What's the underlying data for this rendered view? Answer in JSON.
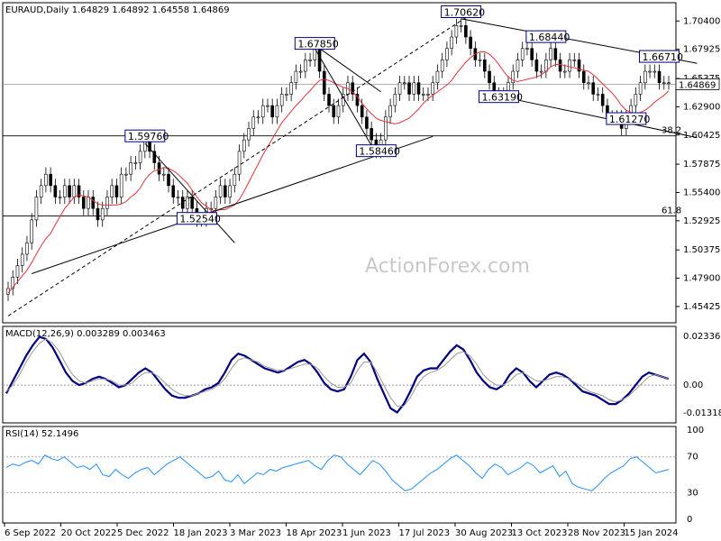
{
  "chart_data": [
    {
      "type": "candlestick",
      "symbol_header": "EURAUD,Daily  1.64829 1.64892 1.64558 1.64869",
      "current_price": "1.64869",
      "watermark": "ActionForex.com",
      "ylim": [
        1.44,
        1.72
      ],
      "y_ticks": [
        "1.70400",
        "1.67925",
        "1.65375",
        "1.62900",
        "1.60425",
        "1.57875",
        "1.55400",
        "1.52925",
        "1.50375",
        "1.47900",
        "1.45425"
      ],
      "x_ticks": [
        "6 Sep 2022",
        "20 Oct 2022",
        "5 Dec 2022",
        "18 Jan 2023",
        "3 Mar 2023",
        "18 Apr 2023",
        "1 Jun 2023",
        "17 Jul 2023",
        "30 Aug 2023",
        "13 Oct 2023",
        "28 Nov 2023",
        "15 Jan 2024"
      ],
      "price_labels": [
        {
          "text": "1.70620",
          "value": 1.7062,
          "date_index": 96
        },
        {
          "text": "1.67850",
          "value": 1.6785,
          "date_index": 65
        },
        {
          "text": "1.68440",
          "value": 1.6844,
          "date_index": 114
        },
        {
          "text": "1.66710",
          "value": 1.6671,
          "date_index": 138
        },
        {
          "text": "1.63190",
          "value": 1.6319,
          "date_index": 104
        },
        {
          "text": "1.61270",
          "value": 1.6127,
          "date_index": 131
        },
        {
          "text": "1.59760",
          "value": 1.5976,
          "date_index": 29
        },
        {
          "text": "1.58460",
          "value": 1.5846,
          "date_index": 78
        },
        {
          "text": "1.52540",
          "value": 1.5254,
          "date_index": 40
        }
      ],
      "fib_levels": [
        {
          "label": "38.2",
          "value": 1.6035
        },
        {
          "label": "61.8",
          "value": 1.5335
        }
      ],
      "horizontal_line": 1.6487,
      "ma_line_color": "#e8303a",
      "candle_color": "#000000",
      "close_series": [
        1.47,
        1.48,
        1.49,
        1.5,
        1.51,
        1.53,
        1.55,
        1.56,
        1.57,
        1.56,
        1.55,
        1.55,
        1.56,
        1.55,
        1.56,
        1.55,
        1.54,
        1.55,
        1.54,
        1.53,
        1.54,
        1.55,
        1.56,
        1.55,
        1.57,
        1.57,
        1.58,
        1.58,
        1.59,
        1.6,
        1.59,
        1.58,
        1.57,
        1.57,
        1.56,
        1.55,
        1.55,
        1.54,
        1.55,
        1.54,
        1.53,
        1.53,
        1.54,
        1.54,
        1.55,
        1.56,
        1.55,
        1.56,
        1.57,
        1.59,
        1.6,
        1.61,
        1.62,
        1.62,
        1.63,
        1.63,
        1.62,
        1.63,
        1.64,
        1.64,
        1.65,
        1.66,
        1.66,
        1.67,
        1.67,
        1.68,
        1.66,
        1.64,
        1.63,
        1.62,
        1.63,
        1.64,
        1.65,
        1.64,
        1.63,
        1.62,
        1.61,
        1.6,
        1.59,
        1.6,
        1.62,
        1.63,
        1.64,
        1.65,
        1.65,
        1.64,
        1.65,
        1.64,
        1.64,
        1.64,
        1.65,
        1.66,
        1.67,
        1.68,
        1.69,
        1.7,
        1.7,
        1.69,
        1.68,
        1.67,
        1.67,
        1.66,
        1.65,
        1.64,
        1.64,
        1.64,
        1.65,
        1.66,
        1.67,
        1.68,
        1.68,
        1.67,
        1.66,
        1.66,
        1.67,
        1.68,
        1.67,
        1.66,
        1.66,
        1.67,
        1.67,
        1.66,
        1.65,
        1.65,
        1.64,
        1.64,
        1.63,
        1.62,
        1.62,
        1.62,
        1.61,
        1.62,
        1.63,
        1.64,
        1.65,
        1.66,
        1.66,
        1.66,
        1.65,
        1.65,
        1.65
      ]
    },
    {
      "type": "line",
      "title": "MACD(12,26,9) 0.003289 0.003463",
      "y_ticks": [
        "0.023366",
        "0.00",
        "-0.013186"
      ],
      "ylim": [
        -0.018,
        0.028
      ],
      "series": [
        {
          "values": [
            -0.004,
            0.002,
            0.008,
            0.014,
            0.019,
            0.023,
            0.022,
            0.018,
            0.012,
            0.006,
            0.002,
            0.0,
            0.001,
            0.003,
            0.004,
            0.003,
            0.001,
            -0.001,
            0.0,
            0.003,
            0.006,
            0.008,
            0.006,
            0.002,
            -0.002,
            -0.005,
            -0.006,
            -0.006,
            -0.005,
            -0.004,
            -0.002,
            -0.001,
            0.001,
            0.006,
            0.012,
            0.015,
            0.014,
            0.012,
            0.01,
            0.008,
            0.007,
            0.006,
            0.007,
            0.009,
            0.011,
            0.012,
            0.01,
            0.006,
            0.001,
            -0.002,
            -0.003,
            -0.002,
            0.004,
            0.012,
            0.015,
            0.011,
            0.003,
            -0.004,
            -0.011,
            -0.013,
            -0.009,
            -0.003,
            0.004,
            0.007,
            0.008,
            0.008,
            0.012,
            0.016,
            0.019,
            0.017,
            0.012,
            0.006,
            0.002,
            -0.001,
            -0.002,
            0.0,
            0.005,
            0.008,
            0.006,
            0.002,
            -0.001,
            0.002,
            0.005,
            0.006,
            0.005,
            0.003,
            0.0,
            -0.003,
            -0.004,
            -0.005,
            -0.007,
            -0.009,
            -0.009,
            -0.007,
            -0.004,
            0.0,
            0.004,
            0.006,
            0.005,
            0.004,
            0.003
          ]
        },
        {
          "values": [
            -0.003,
            0.0,
            0.005,
            0.011,
            0.016,
            0.02,
            0.022,
            0.02,
            0.016,
            0.01,
            0.005,
            0.002,
            0.001,
            0.002,
            0.003,
            0.003,
            0.002,
            0.0,
            0.0,
            0.001,
            0.004,
            0.006,
            0.006,
            0.004,
            0.001,
            -0.002,
            -0.004,
            -0.005,
            -0.005,
            -0.004,
            -0.003,
            -0.002,
            0.0,
            0.003,
            0.008,
            0.012,
            0.013,
            0.012,
            0.011,
            0.009,
            0.008,
            0.007,
            0.007,
            0.008,
            0.009,
            0.01,
            0.01,
            0.008,
            0.004,
            0.001,
            -0.001,
            -0.001,
            0.001,
            0.007,
            0.011,
            0.011,
            0.006,
            0.0,
            -0.006,
            -0.01,
            -0.01,
            -0.006,
            0.0,
            0.004,
            0.006,
            0.007,
            0.009,
            0.012,
            0.015,
            0.016,
            0.014,
            0.01,
            0.005,
            0.002,
            0.0,
            0.0,
            0.002,
            0.005,
            0.006,
            0.004,
            0.002,
            0.002,
            0.003,
            0.004,
            0.004,
            0.003,
            0.001,
            -0.001,
            -0.003,
            -0.004,
            -0.005,
            -0.007,
            -0.008,
            -0.007,
            -0.005,
            -0.002,
            0.001,
            0.004,
            0.005,
            0.004,
            0.003
          ]
        }
      ]
    },
    {
      "type": "line",
      "title": "RSI(14) 52.1496",
      "y_ticks": [
        "100",
        "70",
        "30",
        "0"
      ],
      "ylim": [
        0,
        100
      ],
      "reference_levels": [
        70,
        30
      ],
      "series": [
        {
          "values": [
            58,
            62,
            60,
            64,
            66,
            62,
            72,
            68,
            66,
            70,
            64,
            58,
            60,
            56,
            62,
            50,
            48,
            56,
            50,
            46,
            52,
            56,
            58,
            50,
            56,
            62,
            66,
            70,
            64,
            58,
            52,
            46,
            48,
            54,
            44,
            42,
            50,
            40,
            46,
            52,
            50,
            56,
            54,
            58,
            60,
            62,
            64,
            66,
            60,
            56,
            66,
            72,
            70,
            62,
            56,
            50,
            58,
            66,
            62,
            54,
            44,
            38,
            32,
            34,
            40,
            46,
            52,
            56,
            62,
            68,
            72,
            66,
            60,
            52,
            46,
            56,
            62,
            58,
            50,
            54,
            58,
            64,
            60,
            52,
            56,
            60,
            48,
            54,
            40,
            36,
            34,
            32,
            38,
            46,
            52,
            56,
            60,
            68,
            70,
            64,
            58,
            52,
            54,
            56
          ]
        }
      ]
    }
  ]
}
